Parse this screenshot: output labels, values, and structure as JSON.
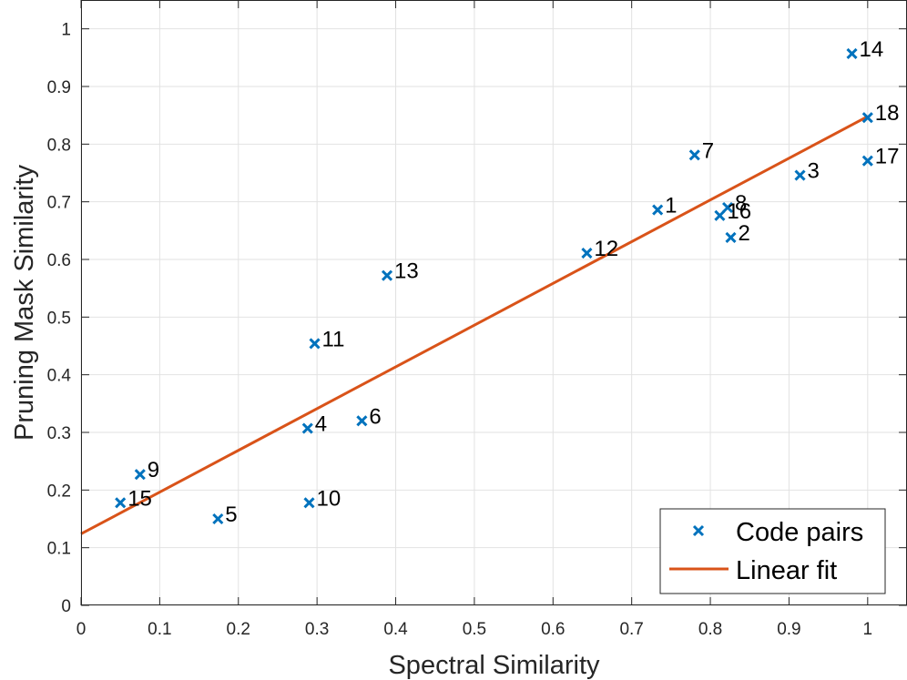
{
  "chart_data": {
    "type": "scatter",
    "title": "",
    "xlabel": "Spectral Similarity",
    "ylabel": "Pruning Mask Similarity",
    "xlim": [
      0,
      1.05
    ],
    "ylim": [
      0,
      1.05
    ],
    "xticks": [
      0,
      0.1,
      0.2,
      0.3,
      0.4,
      0.5,
      0.6,
      0.7,
      0.8,
      0.9,
      1
    ],
    "xtick_labels": [
      "0",
      "0.1",
      "0.2",
      "0.3",
      "0.4",
      "0.5",
      "0.6",
      "0.7",
      "0.8",
      "0.9",
      "1"
    ],
    "yticks": [
      0,
      0.1,
      0.2,
      0.3,
      0.4,
      0.5,
      0.6,
      0.7,
      0.8,
      0.9,
      1
    ],
    "ytick_labels": [
      "0",
      "0.1",
      "0.2",
      "0.3",
      "0.4",
      "0.5",
      "0.6",
      "0.7",
      "0.8",
      "0.9",
      "1"
    ],
    "grid": true,
    "legend_position": "bottom-right",
    "series": [
      {
        "name": "Code pairs",
        "kind": "scatter",
        "marker": "x",
        "color": "#0072BD",
        "points": [
          {
            "label": "1",
            "x": 0.733,
            "y": 0.686
          },
          {
            "label": "2",
            "x": 0.826,
            "y": 0.638
          },
          {
            "label": "3",
            "x": 0.914,
            "y": 0.746
          },
          {
            "label": "4",
            "x": 0.288,
            "y": 0.307
          },
          {
            "label": "5",
            "x": 0.174,
            "y": 0.15
          },
          {
            "label": "6",
            "x": 0.357,
            "y": 0.32
          },
          {
            "label": "7",
            "x": 0.78,
            "y": 0.781
          },
          {
            "label": "8",
            "x": 0.822,
            "y": 0.69
          },
          {
            "label": "9",
            "x": 0.075,
            "y": 0.227
          },
          {
            "label": "10",
            "x": 0.29,
            "y": 0.178
          },
          {
            "label": "11",
            "x": 0.297,
            "y": 0.454
          },
          {
            "label": "12",
            "x": 0.643,
            "y": 0.611
          },
          {
            "label": "13",
            "x": 0.389,
            "y": 0.572
          },
          {
            "label": "14",
            "x": 0.98,
            "y": 0.957
          },
          {
            "label": "15",
            "x": 0.05,
            "y": 0.178
          },
          {
            "label": "16",
            "x": 0.812,
            "y": 0.676
          },
          {
            "label": "17",
            "x": 1.0,
            "y": 0.771
          },
          {
            "label": "18",
            "x": 1.0,
            "y": 0.846
          }
        ]
      },
      {
        "name": "Linear fit",
        "kind": "line",
        "color": "#D95319",
        "x": [
          0,
          1
        ],
        "y": [
          0.124,
          0.848
        ]
      }
    ]
  }
}
